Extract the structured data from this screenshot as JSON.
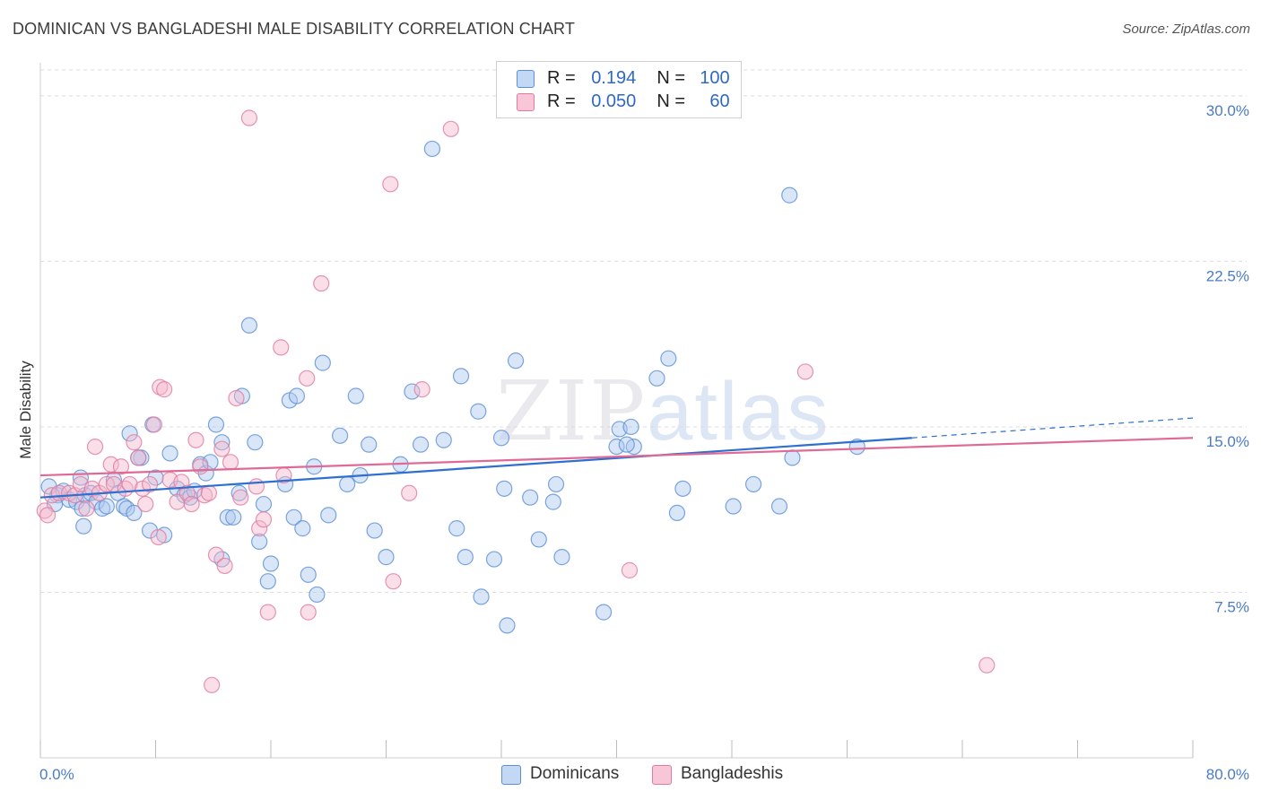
{
  "title": "DOMINICAN VS BANGLADESHI MALE DISABILITY CORRELATION CHART",
  "source": "Source: ZipAtlas.com",
  "watermark": {
    "zip": "ZIP",
    "atlas": "atlas"
  },
  "legend": {
    "rows": [
      {
        "r_label": "R =",
        "r_value": "0.194",
        "n_label": "N =",
        "n_value": "100"
      },
      {
        "r_label": "R =",
        "r_value": "0.050",
        "n_label": "N =",
        "n_value": "60"
      }
    ]
  },
  "bottom_legend": [
    "Dominicans",
    "Bangladeshis"
  ],
  "colors": {
    "blue_fill": "#aac8ef",
    "blue_stroke": "#5b8fd6",
    "blue_line": "#2f6fd0",
    "pink_fill": "#f5b8cc",
    "pink_stroke": "#e07aa0",
    "pink_line": "#e06a96",
    "grid": "#dcdcdc",
    "tick_text": "#4a7cc4"
  },
  "chart_data": {
    "type": "scatter",
    "xlabel": "",
    "ylabel": "Male Disability",
    "xlim": [
      0,
      80
    ],
    "ylim": [
      0,
      31.5
    ],
    "x_tick_labels": [
      {
        "value": 0,
        "label": "0.0%"
      },
      {
        "value": 80,
        "label": "80.0%"
      }
    ],
    "y_tick_labels": [
      {
        "value": 7.5,
        "label": "7.5%"
      },
      {
        "value": 15.0,
        "label": "15.0%"
      },
      {
        "value": 22.5,
        "label": "22.5%"
      },
      {
        "value": 30.0,
        "label": "30.0%"
      }
    ],
    "grid": "horizontal-dashed",
    "legend_position": "top-center",
    "series": [
      {
        "name": "Dominicans",
        "trend": {
          "x0": 0,
          "y0": 11.8,
          "x1": 60.5,
          "y1": 14.5,
          "dashed_to_x": 80,
          "dashed_to_y": 15.4
        },
        "points": [
          [
            0.6,
            12.3
          ],
          [
            1.2,
            11.9
          ],
          [
            1.6,
            12.1
          ],
          [
            2.0,
            11.7
          ],
          [
            2.5,
            11.6
          ],
          [
            1.0,
            11.5
          ],
          [
            2.9,
            11.3
          ],
          [
            3.1,
            11.9
          ],
          [
            2.8,
            12.7
          ],
          [
            3.5,
            12.0
          ],
          [
            3.9,
            11.6
          ],
          [
            4.3,
            11.3
          ],
          [
            4.6,
            11.4
          ],
          [
            5.1,
            12.6
          ],
          [
            5.4,
            12.0
          ],
          [
            5.8,
            11.4
          ],
          [
            6.0,
            11.3
          ],
          [
            6.5,
            11.1
          ],
          [
            3.0,
            10.5
          ],
          [
            6.2,
            14.7
          ],
          [
            7.0,
            13.6
          ],
          [
            6.8,
            13.6
          ],
          [
            7.8,
            15.1
          ],
          [
            8.0,
            12.7
          ],
          [
            7.6,
            10.3
          ],
          [
            8.6,
            10.1
          ],
          [
            9.0,
            13.8
          ],
          [
            9.5,
            12.2
          ],
          [
            10.0,
            11.9
          ],
          [
            10.4,
            11.8
          ],
          [
            10.7,
            12.1
          ],
          [
            11.1,
            13.3
          ],
          [
            11.5,
            12.9
          ],
          [
            11.8,
            13.4
          ],
          [
            12.2,
            15.1
          ],
          [
            12.6,
            14.3
          ],
          [
            13.0,
            10.9
          ],
          [
            13.4,
            10.9
          ],
          [
            13.8,
            12.0
          ],
          [
            14.0,
            16.4
          ],
          [
            14.5,
            19.6
          ],
          [
            14.9,
            14.3
          ],
          [
            15.2,
            9.8
          ],
          [
            15.5,
            11.5
          ],
          [
            15.8,
            8.0
          ],
          [
            16.0,
            8.8
          ],
          [
            17.0,
            12.4
          ],
          [
            17.3,
            16.2
          ],
          [
            17.8,
            16.4
          ],
          [
            17.6,
            10.9
          ],
          [
            18.2,
            10.4
          ],
          [
            18.6,
            8.3
          ],
          [
            19.0,
            13.2
          ],
          [
            19.2,
            7.4
          ],
          [
            19.6,
            17.9
          ],
          [
            20.0,
            11.0
          ],
          [
            20.8,
            14.6
          ],
          [
            21.3,
            12.4
          ],
          [
            21.9,
            16.4
          ],
          [
            22.2,
            12.8
          ],
          [
            22.8,
            14.2
          ],
          [
            23.2,
            10.3
          ],
          [
            24.0,
            9.1
          ],
          [
            25.0,
            13.3
          ],
          [
            25.8,
            16.6
          ],
          [
            26.4,
            14.2
          ],
          [
            27.2,
            27.6
          ],
          [
            28.0,
            14.4
          ],
          [
            28.9,
            10.4
          ],
          [
            29.2,
            17.3
          ],
          [
            29.5,
            9.1
          ],
          [
            30.4,
            15.7
          ],
          [
            30.6,
            7.3
          ],
          [
            31.5,
            9.0
          ],
          [
            32.0,
            14.5
          ],
          [
            32.2,
            12.2
          ],
          [
            32.4,
            6.0
          ],
          [
            33.0,
            18.0
          ],
          [
            34.0,
            11.8
          ],
          [
            34.6,
            9.9
          ],
          [
            35.6,
            11.6
          ],
          [
            35.8,
            12.4
          ],
          [
            36.2,
            9.1
          ],
          [
            39.1,
            6.6
          ],
          [
            40.0,
            14.1
          ],
          [
            40.2,
            14.9
          ],
          [
            41.0,
            15.0
          ],
          [
            41.2,
            14.1
          ],
          [
            42.8,
            17.2
          ],
          [
            43.6,
            18.1
          ],
          [
            44.2,
            11.1
          ],
          [
            44.6,
            12.2
          ],
          [
            48.1,
            11.4
          ],
          [
            49.5,
            12.4
          ],
          [
            51.3,
            11.4
          ],
          [
            52.0,
            25.5
          ],
          [
            52.2,
            13.6
          ],
          [
            56.7,
            14.1
          ],
          [
            40.7,
            14.2
          ],
          [
            12.6,
            9.0
          ]
        ]
      },
      {
        "name": "Bangladeshis",
        "trend": {
          "x0": 0,
          "y0": 12.8,
          "x1": 80,
          "y1": 14.5
        },
        "points": [
          [
            0.3,
            11.2
          ],
          [
            0.8,
            11.9
          ],
          [
            1.3,
            12.0
          ],
          [
            2.0,
            12.0
          ],
          [
            2.4,
            11.9
          ],
          [
            2.8,
            12.4
          ],
          [
            3.2,
            11.3
          ],
          [
            3.6,
            12.2
          ],
          [
            3.8,
            14.1
          ],
          [
            4.1,
            12.0
          ],
          [
            4.6,
            12.4
          ],
          [
            4.9,
            13.3
          ],
          [
            5.1,
            12.4
          ],
          [
            5.6,
            13.2
          ],
          [
            5.9,
            12.2
          ],
          [
            6.2,
            12.4
          ],
          [
            6.5,
            14.3
          ],
          [
            6.8,
            13.6
          ],
          [
            7.1,
            12.2
          ],
          [
            7.3,
            11.5
          ],
          [
            7.6,
            12.4
          ],
          [
            7.9,
            15.1
          ],
          [
            8.2,
            10.0
          ],
          [
            8.3,
            16.8
          ],
          [
            8.6,
            16.7
          ],
          [
            9.0,
            12.6
          ],
          [
            9.5,
            11.6
          ],
          [
            9.8,
            12.5
          ],
          [
            10.2,
            12.0
          ],
          [
            10.5,
            11.5
          ],
          [
            10.8,
            14.4
          ],
          [
            11.1,
            13.2
          ],
          [
            11.4,
            11.9
          ],
          [
            11.7,
            12.0
          ],
          [
            11.9,
            3.3
          ],
          [
            12.2,
            9.2
          ],
          [
            12.6,
            14.0
          ],
          [
            12.8,
            8.7
          ],
          [
            13.2,
            13.4
          ],
          [
            13.6,
            16.3
          ],
          [
            13.9,
            11.8
          ],
          [
            14.5,
            29.0
          ],
          [
            15.0,
            12.3
          ],
          [
            15.2,
            10.4
          ],
          [
            15.5,
            10.8
          ],
          [
            15.8,
            6.6
          ],
          [
            16.7,
            18.6
          ],
          [
            16.9,
            12.8
          ],
          [
            18.5,
            17.2
          ],
          [
            18.6,
            6.6
          ],
          [
            19.5,
            21.5
          ],
          [
            24.5,
            8.0
          ],
          [
            24.3,
            26.0
          ],
          [
            25.6,
            12.0
          ],
          [
            26.5,
            16.7
          ],
          [
            28.5,
            28.5
          ],
          [
            40.9,
            8.5
          ],
          [
            53.1,
            17.5
          ],
          [
            65.7,
            4.2
          ],
          [
            0.5,
            11.0
          ]
        ]
      }
    ]
  }
}
